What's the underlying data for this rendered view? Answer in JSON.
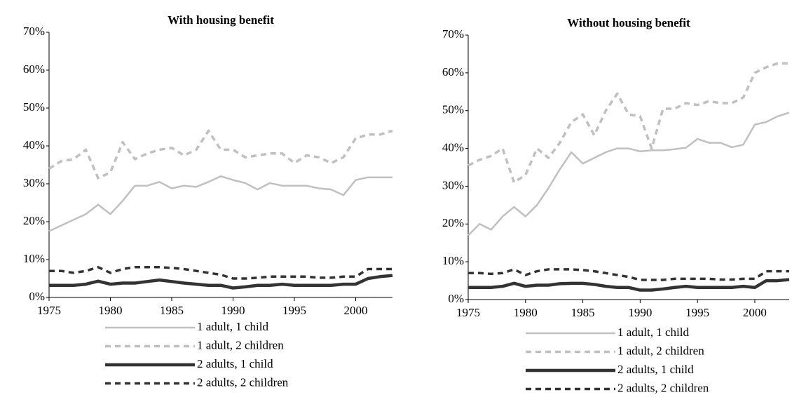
{
  "chart_data": [
    {
      "type": "line",
      "title": "With housing benefit",
      "x": [
        1975,
        1976,
        1977,
        1978,
        1979,
        1980,
        1981,
        1982,
        1983,
        1984,
        1985,
        1986,
        1987,
        1988,
        1989,
        1990,
        1991,
        1992,
        1993,
        1994,
        1995,
        1996,
        1997,
        1998,
        1999,
        2000,
        2001,
        2002,
        2003
      ],
      "xlim": [
        1975,
        2003
      ],
      "xticks": [
        1975,
        1980,
        1985,
        1990,
        1995,
        2000
      ],
      "ylim": [
        0,
        70
      ],
      "yticks": [
        {
          "value": 0,
          "label": "0%"
        },
        {
          "value": 10,
          "label": "10%"
        },
        {
          "value": 20,
          "label": "20%"
        },
        {
          "value": 30,
          "label": "30%"
        },
        {
          "value": 40,
          "label": "40%"
        },
        {
          "value": 50,
          "label": "50%"
        },
        {
          "value": 60,
          "label": "60%"
        },
        {
          "value": 70,
          "label": "70%"
        }
      ],
      "grid": false,
      "series": [
        {
          "name": "1 adult, 1 child",
          "color": "#c0c0c0",
          "dashed": false,
          "line_width": 2.5,
          "values": [
            17.5,
            19,
            20.5,
            22,
            24.5,
            22,
            25.5,
            29.5,
            29.5,
            30.5,
            28.8,
            29.5,
            29.2,
            30.5,
            32,
            31,
            30.2,
            28.5,
            30.2,
            29.5,
            29.5,
            29.5,
            28.8,
            28.5,
            27,
            31,
            31.7,
            31.7,
            31.7
          ]
        },
        {
          "name": "1 adult, 2 children",
          "color": "#c0c0c0",
          "dashed": true,
          "line_width": 3.5,
          "values": [
            34,
            36,
            36.5,
            39,
            31.5,
            33,
            41,
            36.5,
            38,
            39,
            39.5,
            37.5,
            39,
            44,
            39,
            39,
            37,
            37.5,
            38,
            38,
            35.5,
            37.5,
            37,
            35.5,
            37,
            42,
            43,
            43,
            44
          ]
        },
        {
          "name": "2 adults, 1 child",
          "color": "#333333",
          "dashed": false,
          "line_width": 4.5,
          "values": [
            3.2,
            3.2,
            3.2,
            3.5,
            4.3,
            3.5,
            3.8,
            3.8,
            4.2,
            4.6,
            4.2,
            3.8,
            3.5,
            3.2,
            3.2,
            2.5,
            2.8,
            3.2,
            3.2,
            3.5,
            3.2,
            3.2,
            3.2,
            3.2,
            3.5,
            3.5,
            5,
            5.5,
            5.8
          ]
        },
        {
          "name": "2 adults, 2 children",
          "color": "#333333",
          "dashed": true,
          "line_width": 3.5,
          "values": [
            7,
            7,
            6.5,
            7,
            8,
            6.5,
            7.5,
            8,
            8,
            8,
            7.8,
            7.5,
            7,
            6.5,
            6,
            5,
            5,
            5.2,
            5.5,
            5.5,
            5.5,
            5.5,
            5.2,
            5.2,
            5.5,
            5.5,
            7.5,
            7.5,
            7.5
          ]
        }
      ]
    },
    {
      "type": "line",
      "title": "Without housing benefit",
      "x": [
        1975,
        1976,
        1977,
        1978,
        1979,
        1980,
        1981,
        1982,
        1983,
        1984,
        1985,
        1986,
        1987,
        1988,
        1989,
        1990,
        1991,
        1992,
        1993,
        1994,
        1995,
        1996,
        1997,
        1998,
        1999,
        2000,
        2001,
        2002,
        2003
      ],
      "xlim": [
        1975,
        2003
      ],
      "xticks": [
        1975,
        1980,
        1985,
        1990,
        1995,
        2000
      ],
      "ylim": [
        0,
        70
      ],
      "yticks": [
        {
          "value": 0,
          "label": "0%"
        },
        {
          "value": 10,
          "label": "10%"
        },
        {
          "value": 20,
          "label": "20%"
        },
        {
          "value": 30,
          "label": "30%"
        },
        {
          "value": 40,
          "label": "40%"
        },
        {
          "value": 50,
          "label": "50%"
        },
        {
          "value": 60,
          "label": "60%"
        },
        {
          "value": 70,
          "label": "70%"
        }
      ],
      "grid": false,
      "series": [
        {
          "name": "1 adult, 1 child",
          "color": "#c0c0c0",
          "dashed": false,
          "line_width": 2.5,
          "values": [
            17,
            20,
            18.5,
            22,
            24.5,
            22,
            25,
            29.5,
            34.5,
            39,
            36,
            37.5,
            39,
            40,
            40,
            39.2,
            39.5,
            39.5,
            39.8,
            40.2,
            42.5,
            41.5,
            41.5,
            40.3,
            41,
            46.3,
            47,
            48.5,
            49.5
          ]
        },
        {
          "name": "1 adult, 2 children",
          "color": "#c0c0c0",
          "dashed": true,
          "line_width": 3.5,
          "values": [
            35.5,
            37,
            38,
            40,
            31,
            33,
            40,
            37.5,
            41.5,
            47,
            49,
            43.5,
            50,
            54.5,
            49,
            48.5,
            40,
            50.5,
            50.5,
            52,
            51.5,
            52.5,
            52,
            52,
            53.5,
            60,
            61.5,
            62.5,
            62.5
          ]
        },
        {
          "name": "2 adults, 1 child",
          "color": "#333333",
          "dashed": false,
          "line_width": 4.5,
          "values": [
            3.2,
            3.2,
            3.2,
            3.5,
            4.3,
            3.5,
            3.8,
            3.8,
            4.2,
            4.3,
            4.3,
            4,
            3.5,
            3.2,
            3.2,
            2.5,
            2.5,
            2.8,
            3.2,
            3.5,
            3.2,
            3.2,
            3.2,
            3.2,
            3.5,
            3.2,
            5,
            5,
            5.3
          ]
        },
        {
          "name": "2 adults, 2 children",
          "color": "#333333",
          "dashed": true,
          "line_width": 3.5,
          "values": [
            7,
            7,
            6.8,
            7,
            8,
            6.5,
            7.5,
            8,
            8,
            8,
            7.8,
            7.5,
            7,
            6.5,
            6,
            5.2,
            5.2,
            5.2,
            5.5,
            5.5,
            5.5,
            5.5,
            5.3,
            5.3,
            5.5,
            5.5,
            7.5,
            7.5,
            7.5
          ]
        }
      ]
    }
  ]
}
